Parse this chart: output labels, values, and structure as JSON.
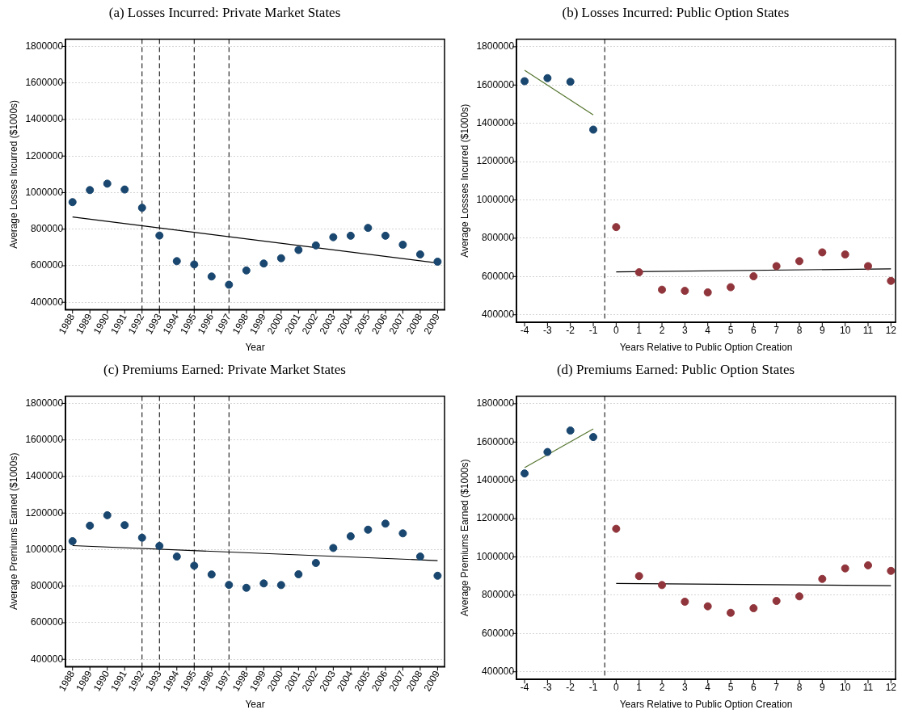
{
  "chart_data": [
    {
      "type": "scatter",
      "title": "(a) Losses Incurred: Private Market States",
      "xlabel": "Year",
      "ylabel": "Average Losses Incurred ($1000s)",
      "xlim": [
        1987.6,
        2009.4
      ],
      "xticks": [
        1988,
        1989,
        1990,
        1991,
        1992,
        1993,
        1994,
        1995,
        1996,
        1997,
        1998,
        1999,
        2000,
        2001,
        2002,
        2003,
        2004,
        2005,
        2006,
        2007,
        2008,
        2009
      ],
      "ylim": [
        360000,
        1840000
      ],
      "yticks": [
        400000,
        600000,
        800000,
        1000000,
        1200000,
        1400000,
        1600000,
        1800000
      ],
      "grid": "y",
      "legend": false,
      "marker": "circle",
      "series": [
        {
          "color": "#1a476f",
          "x": [
            1988,
            1989,
            1990,
            1991,
            1992,
            1993,
            1994,
            1995,
            1996,
            1997,
            1998,
            1999,
            2000,
            2001,
            2002,
            2003,
            2004,
            2005,
            2006,
            2007,
            2008,
            2009
          ],
          "values": [
            948000,
            1014000,
            1049000,
            1017000,
            917000,
            765000,
            625000,
            607000,
            541000,
            496000,
            574000,
            612000,
            641000,
            686000,
            711000,
            756000,
            764000,
            807000,
            764000,
            715000,
            662000,
            622000
          ]
        },
        {
          "type": "line",
          "marker": "none",
          "color": "#000000",
          "x": [
            1988,
            2009
          ],
          "values": [
            867000,
            615000
          ]
        }
      ],
      "ref_lines": [
        {
          "axis": "x",
          "value": 1992,
          "line_style": "dashed"
        },
        {
          "axis": "x",
          "value": 1993,
          "line_style": "dashed"
        },
        {
          "axis": "x",
          "value": 1995,
          "line_style": "dashed"
        },
        {
          "axis": "x",
          "value": 1997,
          "line_style": "dashed"
        }
      ]
    },
    {
      "type": "scatter",
      "title": "(b) Losses Incurred: Public Option States",
      "xlabel": "Years Relative to Public Option Creation",
      "ylabel": "Average Lossses Incurred ($1000s)",
      "xlim": [
        -4.35,
        12.2
      ],
      "xticks": [
        -4,
        -3,
        -2,
        -1,
        0,
        1,
        2,
        3,
        4,
        5,
        6,
        7,
        8,
        9,
        10,
        11,
        12
      ],
      "ylim": [
        360000,
        1840000
      ],
      "yticks": [
        400000,
        600000,
        800000,
        1000000,
        1200000,
        1400000,
        1600000,
        1800000
      ],
      "grid": "y",
      "legend": false,
      "marker": "circle",
      "series": [
        {
          "color": "#1a476f",
          "x": [
            -4,
            -3,
            -2,
            -1
          ],
          "values": [
            1620000,
            1636000,
            1617000,
            1367000
          ]
        },
        {
          "color": "#90353b",
          "x": [
            0,
            1,
            2,
            3,
            4,
            5,
            6,
            7,
            8,
            9,
            10,
            11,
            12
          ],
          "values": [
            858000,
            622000,
            531000,
            525000,
            517000,
            544000,
            601000,
            654000,
            680000,
            726000,
            715000,
            654000,
            577000
          ]
        },
        {
          "type": "line",
          "marker": "none",
          "color": "#55752f",
          "x": [
            -4,
            -1
          ],
          "values": [
            1677000,
            1444000
          ]
        },
        {
          "type": "line",
          "marker": "none",
          "color": "#000000",
          "x": [
            0,
            12
          ],
          "values": [
            624000,
            640000
          ]
        }
      ],
      "ref_lines": [
        {
          "axis": "x",
          "value": -0.5,
          "line_style": "dashed"
        }
      ]
    },
    {
      "type": "scatter",
      "title": "(c) Premiums Earned: Private Market States",
      "xlabel": "Year",
      "ylabel": "Average Premiums Earned ($1000s)",
      "xlim": [
        1987.6,
        2009.4
      ],
      "xticks": [
        1988,
        1989,
        1990,
        1991,
        1992,
        1993,
        1994,
        1995,
        1996,
        1997,
        1998,
        1999,
        2000,
        2001,
        2002,
        2003,
        2004,
        2005,
        2006,
        2007,
        2008,
        2009
      ],
      "ylim": [
        360000,
        1840000
      ],
      "yticks": [
        400000,
        600000,
        800000,
        1000000,
        1200000,
        1400000,
        1600000,
        1800000
      ],
      "grid": "y",
      "legend": false,
      "marker": "circle",
      "series": [
        {
          "color": "#1a476f",
          "x": [
            1988,
            1989,
            1990,
            1991,
            1992,
            1993,
            1994,
            1995,
            1996,
            1997,
            1998,
            1999,
            2000,
            2001,
            2002,
            2003,
            2004,
            2005,
            2006,
            2007,
            2008,
            2009
          ],
          "values": [
            1046000,
            1131000,
            1188000,
            1134000,
            1065000,
            1020000,
            962000,
            912000,
            864000,
            807000,
            791000,
            815000,
            806000,
            865000,
            927000,
            1009000,
            1073000,
            1109000,
            1142000,
            1089000,
            962000,
            857000
          ]
        },
        {
          "type": "line",
          "marker": "none",
          "color": "#000000",
          "x": [
            1988,
            2009
          ],
          "values": [
            1022000,
            940000
          ]
        }
      ],
      "ref_lines": [
        {
          "axis": "x",
          "value": 1992,
          "line_style": "dashed"
        },
        {
          "axis": "x",
          "value": 1993,
          "line_style": "dashed"
        },
        {
          "axis": "x",
          "value": 1995,
          "line_style": "dashed"
        },
        {
          "axis": "x",
          "value": 1997,
          "line_style": "dashed"
        }
      ]
    },
    {
      "type": "scatter",
      "title": "(d) Premiums Earned: Public Option States",
      "xlabel": "Years Relative to Public Option Creation",
      "ylabel": "Average Premiums Earned ($1000s)",
      "xlim": [
        -4.35,
        12.2
      ],
      "xticks": [
        -4,
        -3,
        -2,
        -1,
        0,
        1,
        2,
        3,
        4,
        5,
        6,
        7,
        8,
        9,
        10,
        11,
        12
      ],
      "ylim": [
        360000,
        1840000
      ],
      "yticks": [
        400000,
        600000,
        800000,
        1000000,
        1200000,
        1400000,
        1600000,
        1800000
      ],
      "grid": "y",
      "legend": false,
      "marker": "circle",
      "series": [
        {
          "color": "#1a476f",
          "x": [
            -4,
            -3,
            -2,
            -1
          ],
          "values": [
            1436000,
            1548000,
            1660000,
            1626000
          ]
        },
        {
          "color": "#90353b",
          "x": [
            0,
            1,
            2,
            3,
            4,
            5,
            6,
            7,
            8,
            9,
            10,
            11,
            12
          ],
          "values": [
            1147000,
            900000,
            853000,
            766000,
            742000,
            708000,
            732000,
            770000,
            794000,
            885000,
            940000,
            956000,
            927000
          ]
        },
        {
          "type": "line",
          "marker": "none",
          "color": "#55752f",
          "x": [
            -4,
            -1
          ],
          "values": [
            1466000,
            1669000
          ]
        },
        {
          "type": "line",
          "marker": "none",
          "color": "#000000",
          "x": [
            0,
            12
          ],
          "values": [
            861000,
            850000
          ]
        }
      ],
      "ref_lines": [
        {
          "axis": "x",
          "value": -0.5,
          "line_style": "dashed"
        }
      ]
    }
  ]
}
